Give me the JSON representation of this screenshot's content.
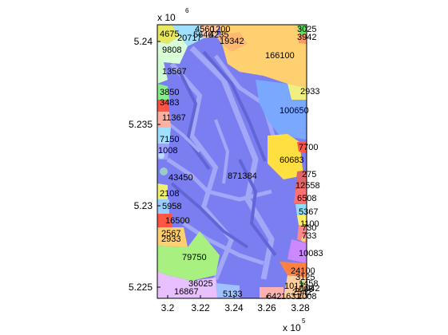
{
  "map": {
    "x_axis": {
      "ticks": [
        "3.2",
        "3.22",
        "3.24",
        "3.26",
        "3.28"
      ],
      "multiplier_base": "x 10",
      "multiplier_exp": "5"
    },
    "y_axis": {
      "ticks": [
        "5.24",
        "5.235",
        "5.23",
        "5.225"
      ],
      "multiplier_base": "x 10",
      "multiplier_exp": "6"
    },
    "colors": {
      "main_basin": "#7b7ef0",
      "ridge_light": "#b8c0ff",
      "shade_dark": "#5458c8",
      "axis": "#000000"
    },
    "region_labels": [
      "4675",
      "20717",
      "4560",
      "1200",
      "5646",
      "4235",
      "19342",
      "3025",
      "3942",
      "9808",
      "166100",
      "13567",
      "3850",
      "2933",
      "3483",
      "100650",
      "11367",
      "7150",
      "7700",
      "1008",
      "60683",
      "43450",
      "871384",
      "275",
      "12558",
      "2108",
      "6508",
      "5958",
      "5367",
      "16500",
      "1100",
      "2567",
      "730",
      "2933",
      "733",
      "10083",
      "79750",
      "24100",
      "3125",
      "36025",
      "1458",
      "16867",
      "1017",
      "5133",
      "2542",
      "642",
      "1631",
      "2008",
      "1008",
      "1042"
    ]
  }
}
